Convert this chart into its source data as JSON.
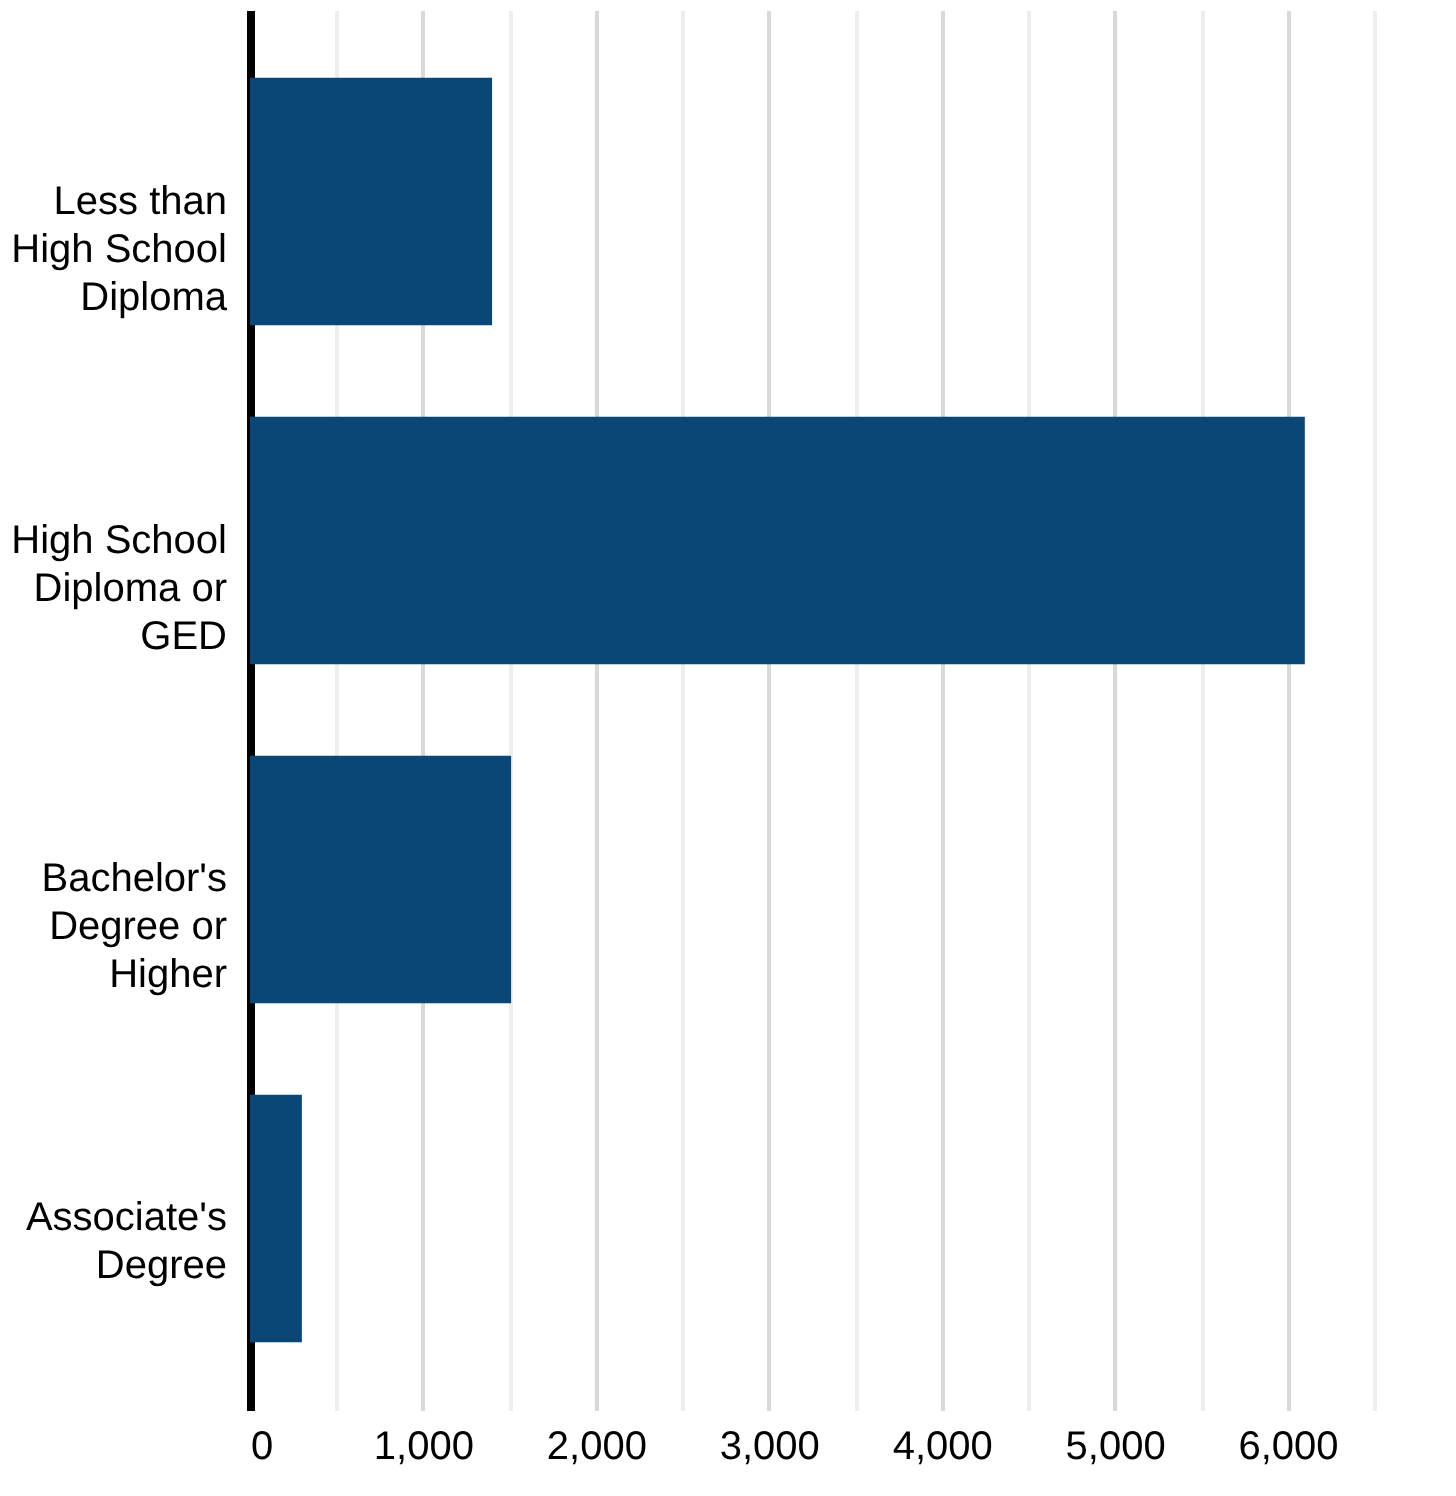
{
  "chart_data": {
    "type": "bar",
    "orientation": "horizontal",
    "categories": [
      "Less than High School Diploma",
      "High School Diploma or GED",
      "Bachelor's Degree or Higher",
      "Associate's Degree"
    ],
    "values": [
      1400,
      6100,
      1510,
      300
    ],
    "color": "#0a4777",
    "xlim": [
      0,
      6500
    ],
    "xticks": [
      0,
      {
        "value": 500,
        "label": null
      },
      {
        "value": 1000,
        "label": "1,000"
      },
      {
        "value": 1500,
        "label": null
      },
      {
        "value": 2000,
        "label": "2,000"
      },
      {
        "value": 2500,
        "label": null
      },
      {
        "value": 3000,
        "label": "3,000"
      },
      {
        "value": 3500,
        "label": null
      },
      {
        "value": 4000,
        "label": "4,000"
      },
      {
        "value": 4500,
        "label": null
      },
      {
        "value": 5000,
        "label": "5,000"
      },
      {
        "value": 5500,
        "label": null
      },
      {
        "value": 6000,
        "label": "6,000"
      },
      {
        "value": 6500,
        "label": null
      }
    ],
    "grid": "x"
  }
}
